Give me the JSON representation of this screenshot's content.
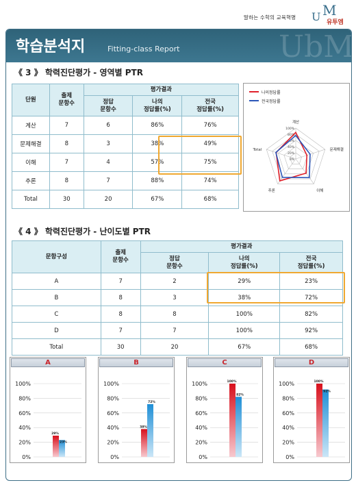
{
  "header": {
    "slogan": "말하는 수학의 교육혁명",
    "logo_um": "U",
    "logo_m": "M",
    "logo_brand": "유투엠",
    "title": "학습분석지",
    "subtitle": "Fitting-class Report",
    "watermark": "UbM"
  },
  "section3": {
    "title": "《 3 》 학력진단평가 - 영역별 PTR",
    "headers": {
      "unit": "단원",
      "count": "출제\n문항수",
      "result": "평가결과",
      "correct": "정답\n문항수",
      "mine": "나의\n정답률(%)",
      "national": "전국\n정답률(%)"
    },
    "rows": [
      {
        "name": "계산",
        "count": "7",
        "correct": "6",
        "mine": "86%",
        "national": "76%"
      },
      {
        "name": "문제해결",
        "count": "8",
        "correct": "3",
        "mine": "38%",
        "national": "49%"
      },
      {
        "name": "이해",
        "count": "7",
        "correct": "4",
        "mine": "57%",
        "national": "75%"
      },
      {
        "name": "추론",
        "count": "8",
        "correct": "7",
        "mine": "88%",
        "national": "74%"
      },
      {
        "name": "Total",
        "count": "30",
        "correct": "20",
        "mine": "67%",
        "national": "68%"
      }
    ]
  },
  "section4": {
    "title": "《 4 》 학력진단평가 - 난이도별 PTR",
    "headers": {
      "unit": "문항구성",
      "count": "출제\n문항수",
      "result": "평가결과",
      "correct": "정답\n문항수",
      "mine": "나의\n정답률(%)",
      "national": "전국\n정답률(%)"
    },
    "rows": [
      {
        "name": "A",
        "count": "7",
        "correct": "2",
        "mine": "29%",
        "national": "23%"
      },
      {
        "name": "B",
        "count": "8",
        "correct": "3",
        "mine": "38%",
        "national": "72%"
      },
      {
        "name": "C",
        "count": "8",
        "correct": "8",
        "mine": "100%",
        "national": "82%"
      },
      {
        "name": "D",
        "count": "7",
        "correct": "7",
        "mine": "100%",
        "national": "92%"
      },
      {
        "name": "Total",
        "count": "30",
        "correct": "20",
        "mine": "67%",
        "national": "68%"
      }
    ]
  },
  "colors": {
    "mine": "#e0202a",
    "national": "#2a55b8",
    "highlight": "#f0a830"
  },
  "chart_data": [
    {
      "type": "radar",
      "legend": [
        "나의정답률",
        "전국정답률"
      ],
      "axes": [
        "계산",
        "문제해결",
        "이해",
        "추론",
        "Total"
      ],
      "tick_labels": [
        "100%",
        "80%",
        "60%",
        "40%",
        "20%",
        "0%"
      ],
      "series": [
        {
          "name": "나의정답률",
          "values": [
            86,
            38,
            57,
            88,
            67
          ]
        },
        {
          "name": "전국정답률",
          "values": [
            76,
            49,
            75,
            74,
            68
          ]
        }
      ],
      "rlim": [
        0,
        100
      ]
    },
    {
      "type": "bar",
      "title": "A",
      "categories": [
        "나의정답률",
        "전국정답률"
      ],
      "values": [
        29,
        23
      ],
      "labels": [
        "29%",
        "23%"
      ],
      "yticks": [
        "100%",
        "80%",
        "60%",
        "40%",
        "20%",
        "0%"
      ],
      "ylim": [
        0,
        100
      ]
    },
    {
      "type": "bar",
      "title": "B",
      "categories": [
        "나의정답률",
        "전국정답률"
      ],
      "values": [
        38,
        72
      ],
      "labels": [
        "38%",
        "72%"
      ],
      "yticks": [
        "100%",
        "80%",
        "60%",
        "40%",
        "20%",
        "0%"
      ],
      "ylim": [
        0,
        100
      ]
    },
    {
      "type": "bar",
      "title": "C",
      "categories": [
        "나의정답률",
        "전국정답률"
      ],
      "values": [
        100,
        82
      ],
      "labels": [
        "100%",
        "82%"
      ],
      "yticks": [
        "100%",
        "80%",
        "60%",
        "40%",
        "20%",
        "0%"
      ],
      "ylim": [
        0,
        100
      ]
    },
    {
      "type": "bar",
      "title": "D",
      "categories": [
        "나의정답률",
        "전국정답률"
      ],
      "values": [
        100,
        92
      ],
      "labels": [
        "100%",
        "92%"
      ],
      "yticks": [
        "100%",
        "80%",
        "60%",
        "40%",
        "20%",
        "0%"
      ],
      "ylim": [
        0,
        100
      ]
    }
  ]
}
